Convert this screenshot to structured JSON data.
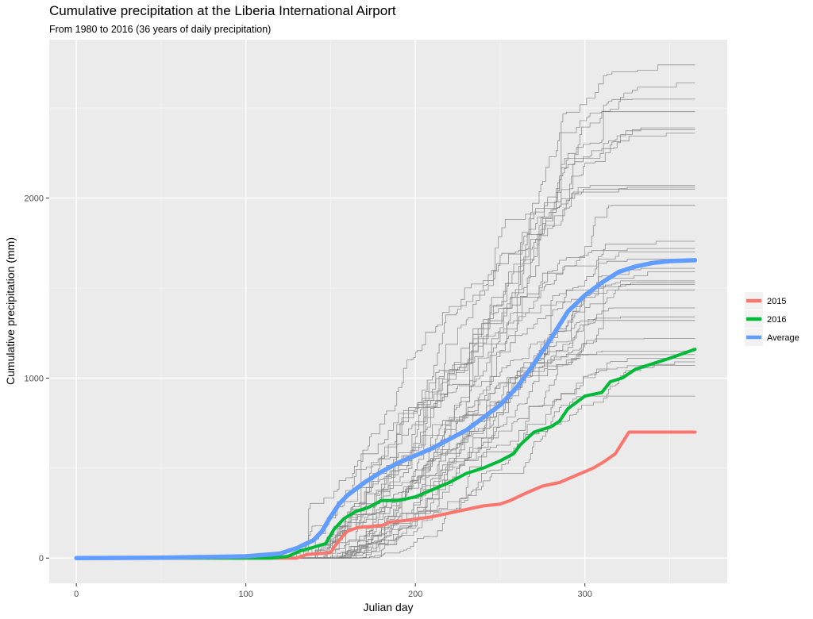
{
  "chart_data": {
    "type": "line",
    "title": "Cumulative precipitation at the Liberia International Airport",
    "subtitle": "From 1980 to 2016 (36 years of daily precipitation)",
    "xlabel": "Julian day",
    "ylabel": "Cumulative precipitation (mm)",
    "xlim": [
      -16,
      384
    ],
    "ylim": [
      -140,
      2880
    ],
    "x_ticks": [
      0,
      100,
      200,
      300
    ],
    "y_ticks": [
      0,
      1000,
      2000
    ],
    "grid": true,
    "legend_position": "right",
    "background_series": {
      "color": "#7f7f7f",
      "description_final_values": [
        2740,
        2640,
        2550,
        2480,
        2390,
        2380,
        2360,
        2070,
        2060,
        2050,
        1960,
        1760,
        1720,
        1700,
        1660,
        1610,
        1590,
        1540,
        1530,
        1520,
        1490,
        1390,
        1340,
        1320,
        1220,
        1150,
        1130,
        1110,
        1090,
        1070,
        900
      ],
      "onset_days": [
        128,
        130,
        133,
        135,
        137,
        139,
        140,
        141,
        142,
        143,
        144,
        145,
        146,
        147,
        148,
        149,
        150,
        151,
        152,
        153,
        154,
        155,
        156,
        157,
        158,
        160,
        162,
        164,
        166,
        168,
        172
      ]
    },
    "series": [
      {
        "name": "2015",
        "color": "#F8766D",
        "x": [
          0,
          130,
          136,
          150,
          152,
          156,
          160,
          166,
          180,
          185,
          195,
          210,
          220,
          230,
          240,
          250,
          256,
          265,
          275,
          285,
          295,
          305,
          312,
          318,
          322,
          326,
          335,
          365
        ],
        "y": [
          0,
          0,
          20,
          30,
          60,
          110,
          150,
          170,
          180,
          200,
          210,
          230,
          250,
          270,
          290,
          300,
          320,
          360,
          400,
          420,
          460,
          500,
          540,
          580,
          640,
          700,
          700,
          700
        ]
      },
      {
        "name": "2016",
        "color": "#00BA38",
        "x": [
          0,
          115,
          125,
          132,
          140,
          147,
          152,
          158,
          165,
          172,
          180,
          190,
          200,
          210,
          220,
          230,
          240,
          250,
          258,
          262,
          270,
          280,
          285,
          290,
          300,
          310,
          315,
          322,
          330,
          340,
          350,
          365
        ],
        "y": [
          0,
          0,
          10,
          40,
          60,
          80,
          160,
          220,
          260,
          280,
          320,
          320,
          340,
          380,
          420,
          470,
          500,
          540,
          580,
          630,
          700,
          730,
          760,
          830,
          900,
          920,
          980,
          1000,
          1050,
          1080,
          1110,
          1160
        ]
      },
      {
        "name": "Average",
        "color": "#619CFF",
        "x": [
          0,
          50,
          100,
          120,
          130,
          140,
          145,
          150,
          155,
          160,
          170,
          180,
          190,
          200,
          210,
          220,
          230,
          240,
          250,
          260,
          270,
          280,
          290,
          300,
          310,
          320,
          330,
          340,
          350,
          365
        ],
        "y": [
          0,
          2,
          10,
          25,
          55,
          100,
          150,
          230,
          300,
          350,
          420,
          480,
          530,
          570,
          610,
          660,
          710,
          780,
          850,
          950,
          1080,
          1220,
          1370,
          1460,
          1530,
          1590,
          1620,
          1640,
          1650,
          1655
        ]
      }
    ]
  }
}
